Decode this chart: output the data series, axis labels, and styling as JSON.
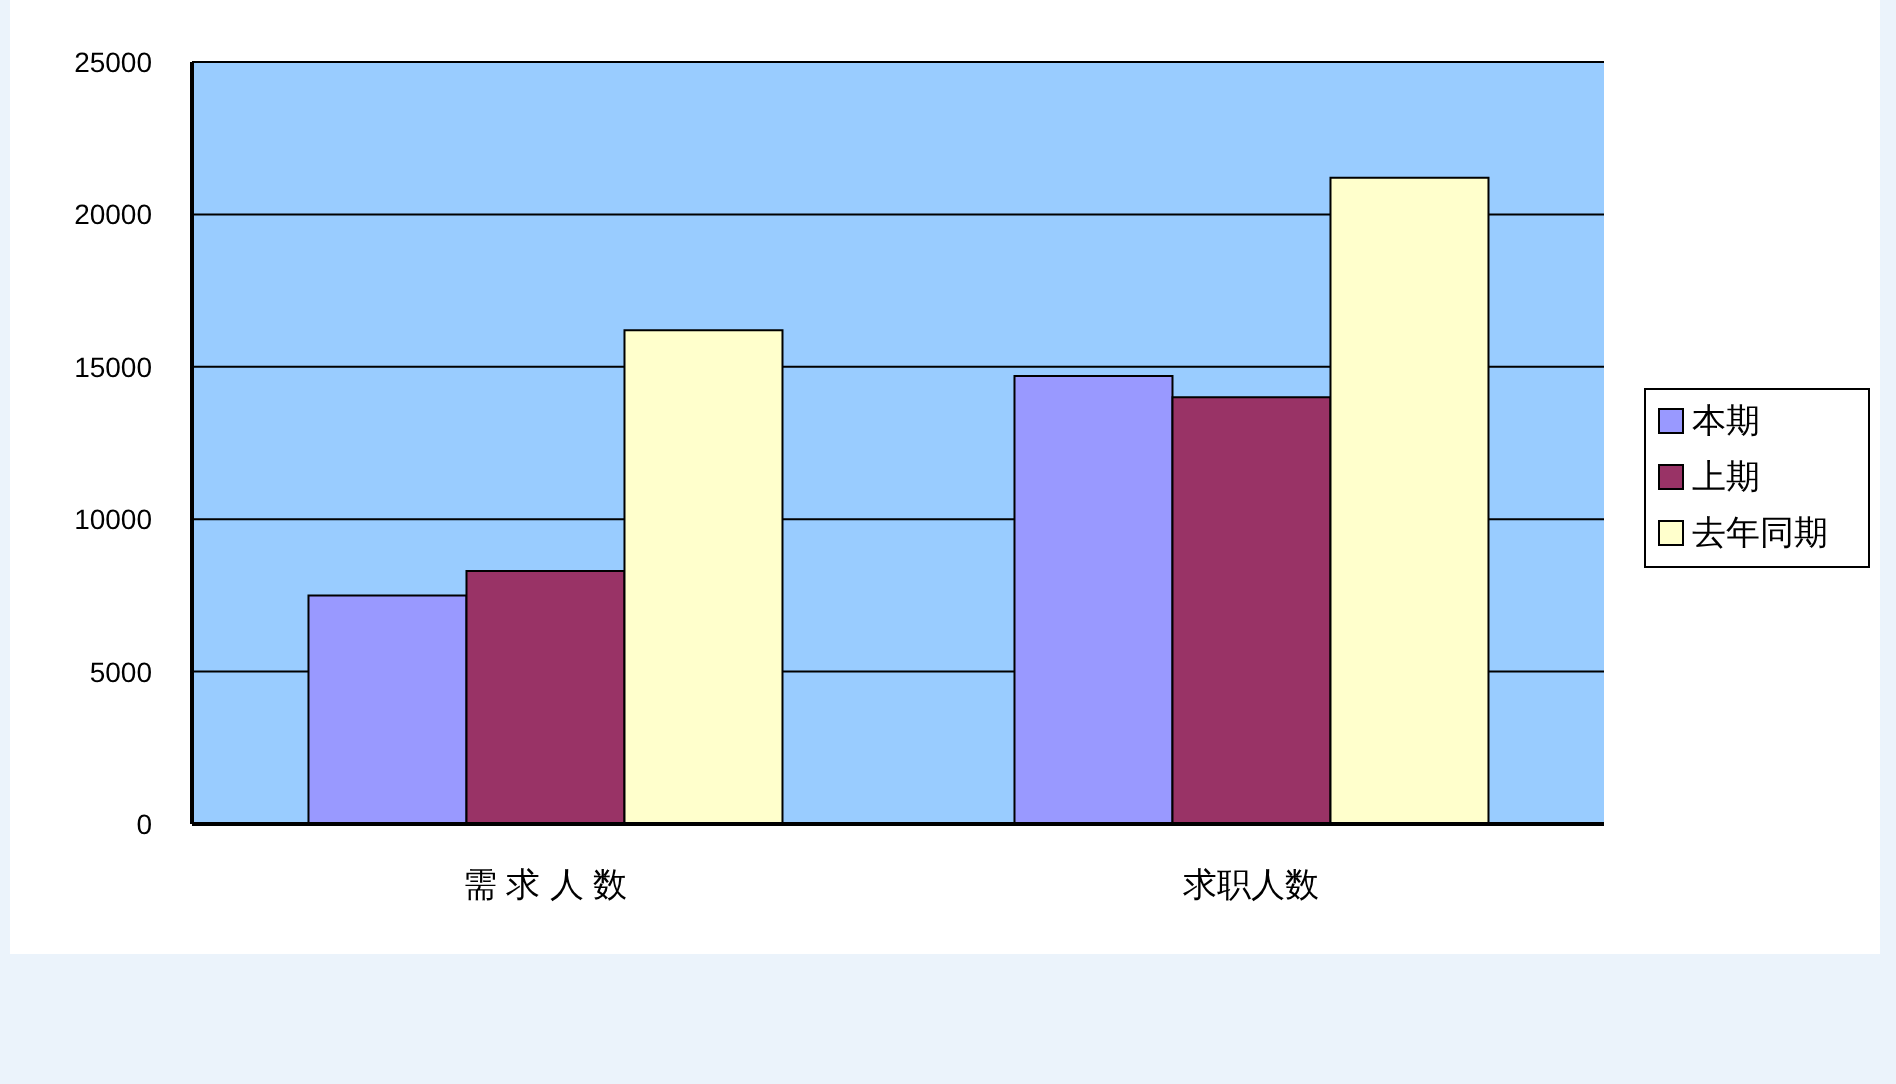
{
  "chart_data": {
    "type": "bar",
    "categories": [
      "需 求 人 数",
      "求职人数"
    ],
    "series": [
      {
        "name": "本期",
        "color": "#9999ff",
        "values": [
          7500,
          14700
        ]
      },
      {
        "name": "上期",
        "color": "#993366",
        "values": [
          8300,
          14000
        ]
      },
      {
        "name": "去年同期",
        "color": "#ffffcc",
        "values": [
          16200,
          21200
        ]
      }
    ],
    "ylim": [
      0,
      25000
    ],
    "yticks": [
      0,
      5000,
      10000,
      15000,
      20000,
      25000
    ],
    "grid": "y",
    "legend": "right"
  }
}
